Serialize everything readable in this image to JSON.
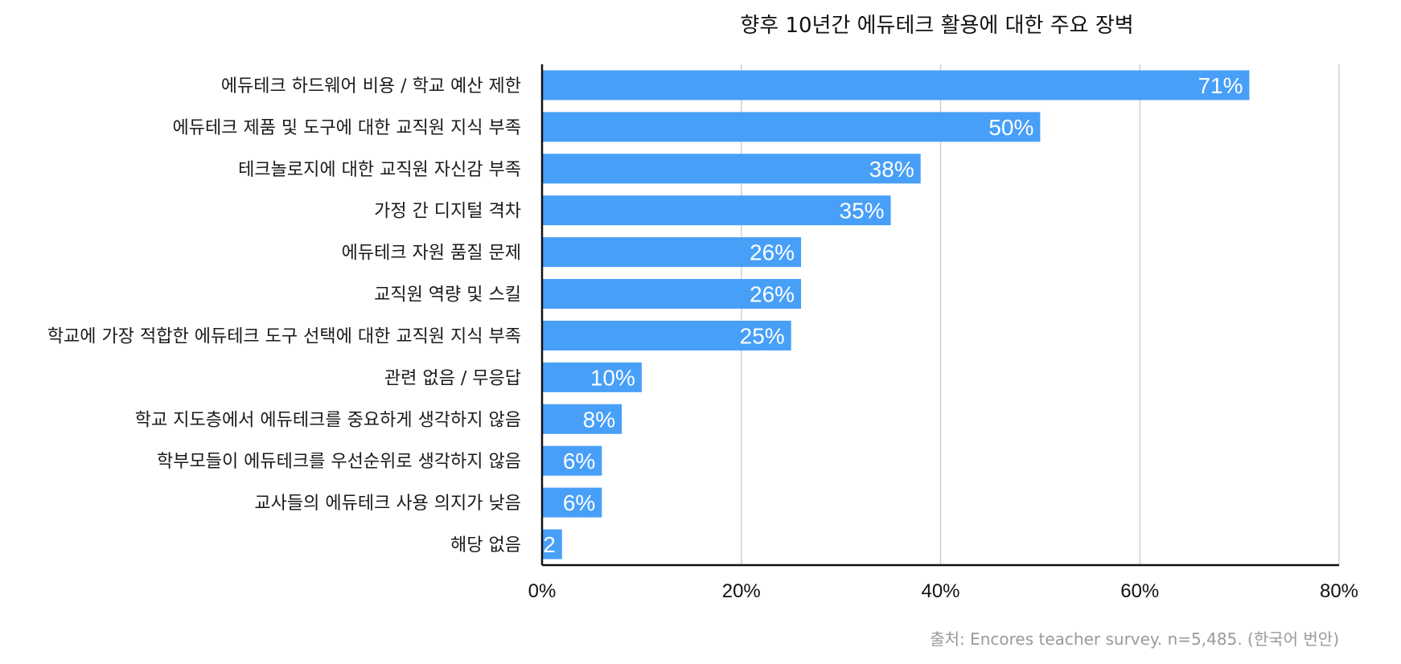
{
  "chart_data": {
    "type": "bar",
    "orientation": "horizontal",
    "title": "향후 10년간 에듀테크 활용에 대한 주요 장벽",
    "categories": [
      "에듀테크 하드웨어 비용 / 학교 예산 제한",
      "에듀테크 제품 및 도구에 대한 교직원 지식 부족",
      "테크놀로지에 대한 교직원 자신감 부족",
      "가정 간 디지털 격차",
      "에듀테크 자원 품질 문제",
      "교직원 역량 및 스킬",
      "학교에 가장 적합한 에듀테크 도구 선택에 대한 교직원 지식 부족",
      "관련 없음 / 무응답",
      "학교 지도층에서 에듀테크를 중요하게 생각하지 않음",
      "학부모들이 에듀테크를 우선순위로 생각하지 않음",
      "교사들의 에듀테크 사용 의지가 낮음",
      "해당 없음"
    ],
    "values": [
      71,
      50,
      38,
      35,
      26,
      26,
      25,
      10,
      8,
      6,
      6,
      2
    ],
    "value_labels": [
      "71%",
      "50%",
      "38%",
      "35%",
      "26%",
      "26%",
      "25%",
      "10%",
      "8%",
      "6%",
      "6%",
      "2"
    ],
    "xlim": [
      0,
      80
    ],
    "xticks": [
      0,
      20,
      40,
      60,
      80
    ],
    "xtick_labels": [
      "0%",
      "20%",
      "40%",
      "60%",
      "80%"
    ],
    "xlabel": "",
    "ylabel": "",
    "grid": "vertical",
    "bar_color": "#479ff8",
    "source": "출처: Encores teacher survey. n=5,485. (한국어 번안)"
  }
}
